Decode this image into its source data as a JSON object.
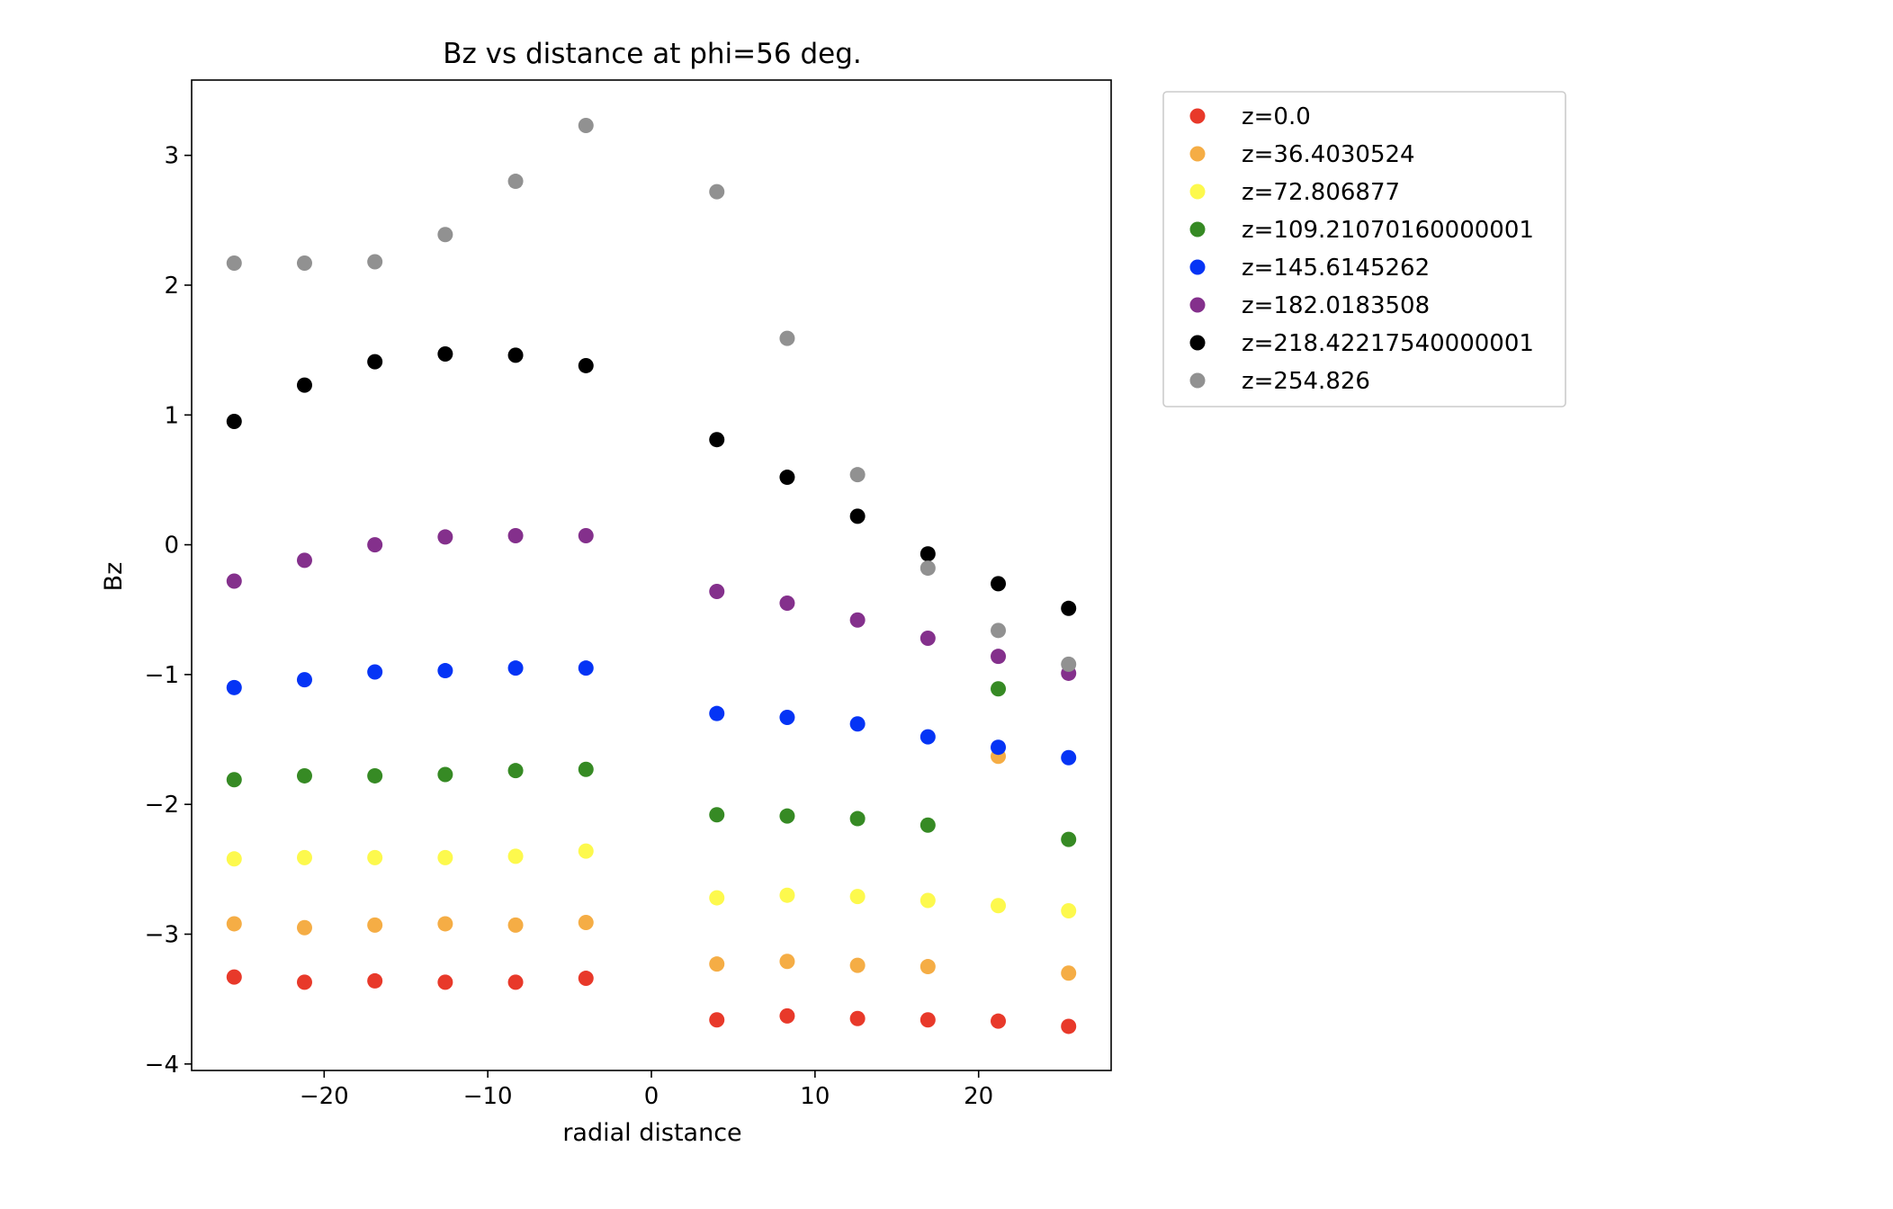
{
  "chart_data": {
    "type": "scatter",
    "title": "Bz vs distance at phi=56 deg.",
    "xlabel": "radial distance",
    "ylabel": "Bz",
    "xlim": [
      -28.1,
      28.1
    ],
    "ylim": [
      -4.05,
      3.58
    ],
    "xticks": [
      -20,
      -10,
      0,
      10,
      20
    ],
    "xtick_labels": [
      "−20",
      "−10",
      "0",
      "10",
      "20"
    ],
    "yticks": [
      -4,
      -3,
      -2,
      -1,
      0,
      1,
      2,
      3
    ],
    "ytick_labels": [
      "−4",
      "−3",
      "−2",
      "−1",
      "0",
      "1",
      "2",
      "3"
    ],
    "grid": false,
    "legend_position": "outside-top-right",
    "x": [
      -25.5,
      -21.2,
      -16.9,
      -12.6,
      -8.3,
      -4.0,
      4.0,
      8.3,
      12.6,
      16.9,
      21.2,
      25.5
    ],
    "series": [
      {
        "name": "z=0.0",
        "color": "#e8392a",
        "y": [
          -3.33,
          -3.37,
          -3.36,
          -3.37,
          -3.37,
          -3.34,
          -3.66,
          -3.63,
          -3.65,
          -3.66,
          -3.67,
          -3.71
        ]
      },
      {
        "name": "z=36.4030524",
        "color": "#f5ad45",
        "y": [
          -2.92,
          -2.95,
          -2.93,
          -2.92,
          -2.93,
          -2.91,
          -3.23,
          -3.21,
          -3.24,
          -3.25,
          -1.63,
          -3.3
        ]
      },
      {
        "name": "z=72.806877",
        "color": "#fdf94d",
        "y": [
          -2.42,
          -2.41,
          -2.41,
          -2.41,
          -2.4,
          -2.36,
          -2.72,
          -2.7,
          -2.71,
          -2.74,
          -2.78,
          -2.82
        ]
      },
      {
        "name": "z=109.21070160000001",
        "color": "#368a24",
        "y": [
          -1.81,
          -1.78,
          -1.78,
          -1.77,
          -1.74,
          -1.73,
          -2.08,
          -2.09,
          -2.11,
          -2.16,
          -1.11,
          -2.27
        ]
      },
      {
        "name": "z=145.6145262",
        "color": "#0534f5",
        "y": [
          -1.1,
          -1.04,
          -0.98,
          -0.97,
          -0.95,
          -0.95,
          -1.3,
          -1.33,
          -1.38,
          -1.48,
          -1.56,
          -1.64
        ]
      },
      {
        "name": "z=182.0183508",
        "color": "#84308c",
        "y": [
          -0.28,
          -0.12,
          0.0,
          0.06,
          0.07,
          0.07,
          -0.36,
          -0.45,
          -0.58,
          -0.72,
          -0.86,
          -0.99
        ]
      },
      {
        "name": "z=218.42217540000001",
        "color": "#000000",
        "y": [
          0.95,
          1.23,
          1.41,
          1.47,
          1.46,
          1.38,
          0.81,
          0.52,
          0.22,
          -0.07,
          -0.3,
          -0.49
        ]
      },
      {
        "name": "z=254.826",
        "color": "#919191",
        "y": [
          2.17,
          2.17,
          2.18,
          2.39,
          2.8,
          3.23,
          null,
          1.59,
          0.54,
          -0.18,
          -0.66,
          -0.92
        ]
      }
    ],
    "extra_points": [
      {
        "series": "z=254.826",
        "x": 4.0,
        "y": 2.72
      }
    ]
  }
}
